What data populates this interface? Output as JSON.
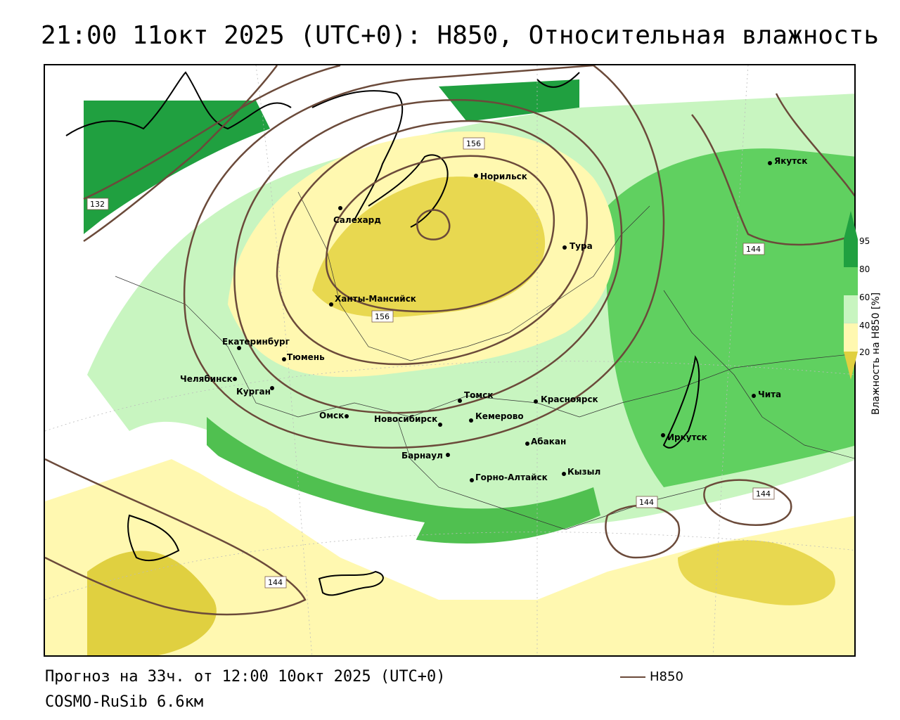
{
  "title": "21:00 11окт 2025 (UTC+0): H850, Относительная влажность",
  "footer": {
    "forecast": "Прогноз на 33ч. от 12:00 10окт 2025 (UTC+0)",
    "model": "COSMO-RuSib 6.6км"
  },
  "legend": {
    "series_label": "H850",
    "line_color": "#6b4a3a"
  },
  "colorbar": {
    "title": "Влажность на H850 [%]",
    "ticks": [
      "95",
      "80",
      "60",
      "40",
      "20"
    ],
    "colors": {
      "very_dry": "#e0d040",
      "dry": "#fff8b0",
      "neutral": "#ffffff",
      "moist": "#c8f5c0",
      "wet": "#60d060",
      "very_wet": "#20a040"
    }
  },
  "cities": [
    {
      "name": "Норильск"
    },
    {
      "name": "Якутск"
    },
    {
      "name": "Салехард"
    },
    {
      "name": "Тура"
    },
    {
      "name": "Ханты-Мансийск"
    },
    {
      "name": "Екатеринбург"
    },
    {
      "name": "Тюмень"
    },
    {
      "name": "Челябинск"
    },
    {
      "name": "Курган"
    },
    {
      "name": "Омск"
    },
    {
      "name": "Новосибирск"
    },
    {
      "name": "Томск"
    },
    {
      "name": "Кемерово"
    },
    {
      "name": "Красноярск"
    },
    {
      "name": "Абакан"
    },
    {
      "name": "Барнаул"
    },
    {
      "name": "Горно-Алтайск"
    },
    {
      "name": "Кызыл"
    },
    {
      "name": "Иркутск"
    },
    {
      "name": "Чита"
    }
  ],
  "contour_labels": [
    "156",
    "156",
    "132",
    "144",
    "144",
    "144",
    "144"
  ]
}
